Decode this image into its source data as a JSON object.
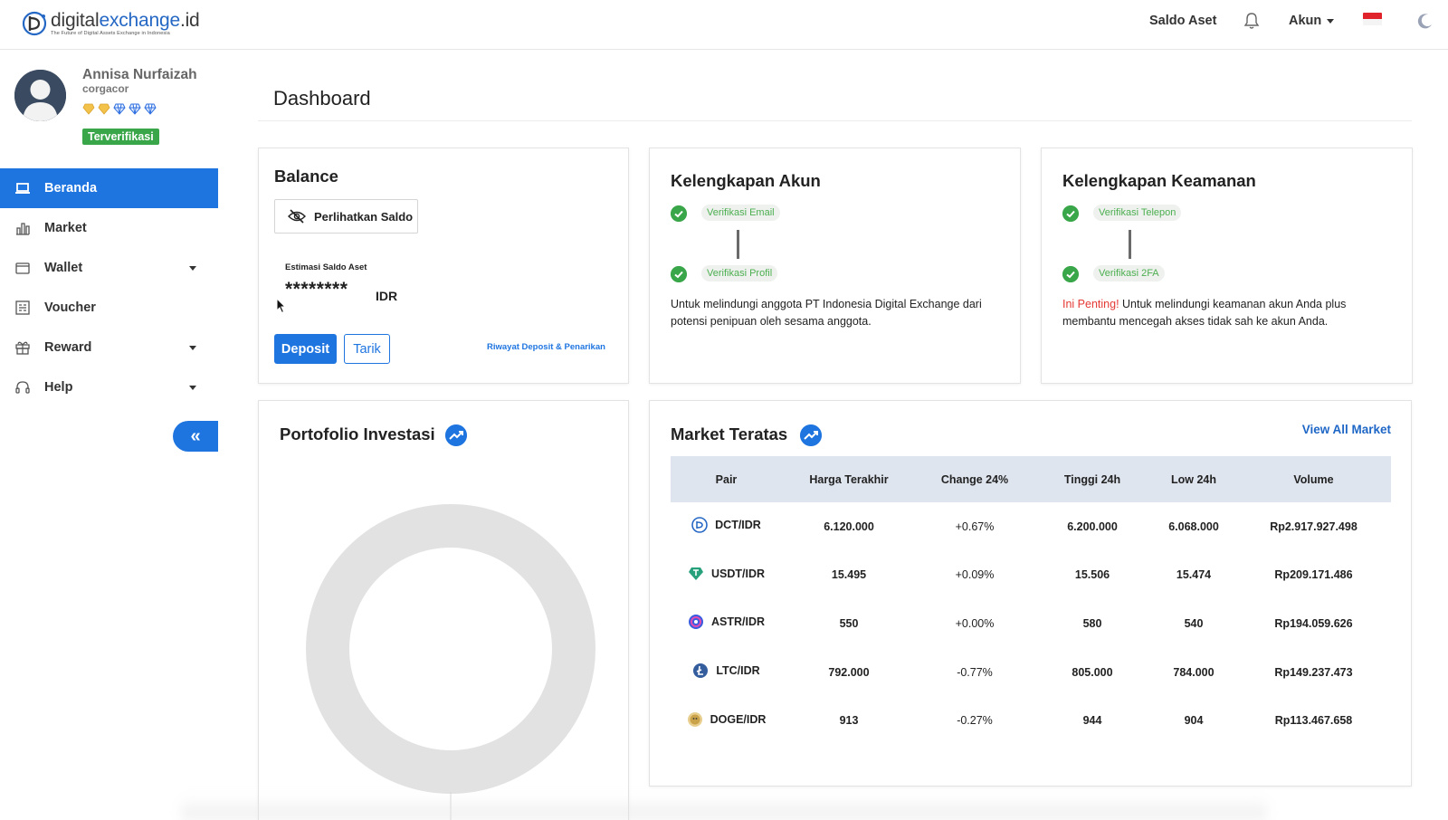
{
  "header": {
    "logo_name_prefix": "digital",
    "logo_name_accent": "exchange",
    "logo_name_suffix": ".id",
    "logo_tagline": "The Future of Digital Assets Exchange in Indonesia",
    "saldo_aset": "Saldo Aset",
    "akun": "Akun",
    "icons": [
      "bell-icon",
      "indonesia-flag-icon",
      "moon-icon"
    ]
  },
  "user": {
    "name": "Annisa Nurfaizah",
    "handle": "corgacor",
    "badge": "Terverifikasi",
    "gem_icons": [
      "gold-gem-icon",
      "gold-gem-icon",
      "blue-diamond-icon",
      "blue-diamond-icon",
      "blue-diamond-icon"
    ]
  },
  "sidebar": {
    "items": [
      {
        "label": "Beranda",
        "icon": "laptop-icon",
        "active": true,
        "expandable": false
      },
      {
        "label": "Market",
        "icon": "bar-chart-icon",
        "active": false,
        "expandable": false
      },
      {
        "label": "Wallet",
        "icon": "wallet-icon",
        "active": false,
        "expandable": true
      },
      {
        "label": "Voucher",
        "icon": "voucher-icon",
        "active": false,
        "expandable": false
      },
      {
        "label": "Reward",
        "icon": "gift-icon",
        "active": false,
        "expandable": true
      },
      {
        "label": "Help",
        "icon": "headset-icon",
        "active": false,
        "expandable": true
      }
    ],
    "collapse_label": "«"
  },
  "page": {
    "title": "Dashboard"
  },
  "balance": {
    "title": "Balance",
    "show_button": "Perlihatkan Saldo",
    "estimate_label": "Estimasi Saldo Aset",
    "masked_value": "********",
    "currency": "IDR",
    "deposit": "Deposit",
    "tarik": "Tarik",
    "history_link": "Riwayat Deposit & Penarikan"
  },
  "account_completeness": {
    "title": "Kelengkapan Akun",
    "step1": "Verifikasi Email",
    "step2": "Verifikasi Profil",
    "description": "Untuk melindungi anggota PT Indonesia Digital Exchange dari potensi penipuan oleh sesama anggota."
  },
  "security_completeness": {
    "title": "Kelengkapan Keamanan",
    "step1": "Verifikasi Telepon",
    "step2": "Verifikasi 2FA",
    "important": "Ini Penting!",
    "description": " Untuk melindungi keamanan akun Anda plus membantu mencegah akses tidak sah ke akun Anda."
  },
  "portfolio": {
    "title": "Portofolio Investasi"
  },
  "market": {
    "title": "Market Teratas",
    "view_all": "View All Market",
    "columns": [
      "Pair",
      "Harga Terakhir",
      "Change 24%",
      "Tinggi 24h",
      "Low 24h",
      "Volume"
    ],
    "rows": [
      {
        "pair": "DCT/IDR",
        "coin": "dct-coin-icon",
        "last": "6.120.000",
        "change": "+0.67%",
        "dir": "pos",
        "high": "6.200.000",
        "low": "6.068.000",
        "volume": "Rp2.917.927.498"
      },
      {
        "pair": "USDT/IDR",
        "coin": "usdt-coin-icon",
        "last": "15.495",
        "change": "+0.09%",
        "dir": "pos",
        "high": "15.506",
        "low": "15.474",
        "volume": "Rp209.171.486"
      },
      {
        "pair": "ASTR/IDR",
        "coin": "astr-coin-icon",
        "last": "550",
        "change": "+0.00%",
        "dir": "pos",
        "high": "580",
        "low": "540",
        "volume": "Rp194.059.626"
      },
      {
        "pair": "LTC/IDR",
        "coin": "ltc-coin-icon",
        "last": "792.000",
        "change": "-0.77%",
        "dir": "neg",
        "high": "805.000",
        "low": "784.000",
        "volume": "Rp149.237.473"
      },
      {
        "pair": "DOGE/IDR",
        "coin": "doge-coin-icon",
        "last": "913",
        "change": "-0.27%",
        "dir": "neg",
        "high": "944",
        "low": "904",
        "volume": "Rp113.467.658"
      }
    ]
  },
  "colors": {
    "primary": "#1f75e0",
    "success": "#3aa64a",
    "danger": "#e53935",
    "table_header": "#dfe5ef"
  }
}
